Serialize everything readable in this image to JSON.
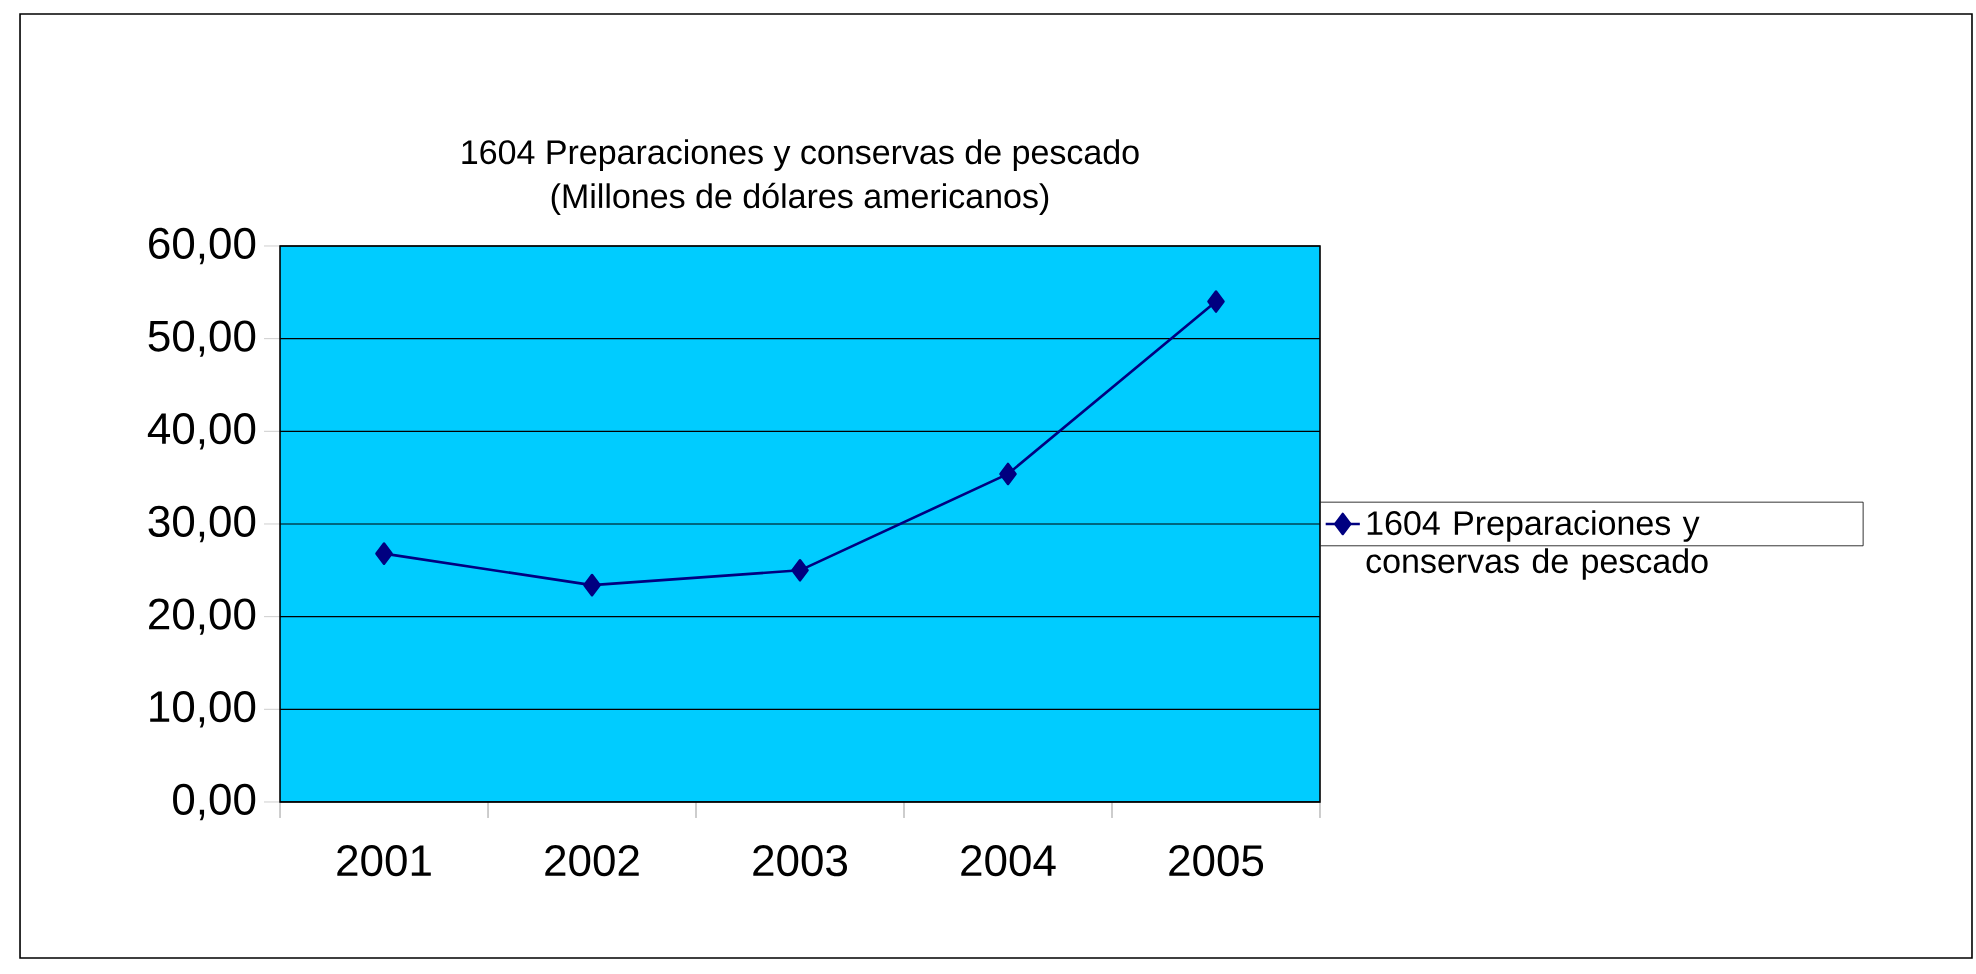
{
  "chart_data": {
    "type": "line",
    "title": "1604 Preparaciones y conservas de pescado",
    "subtitle": "(Millones de dólares americanos)",
    "categories": [
      "2001",
      "2002",
      "2003",
      "2004",
      "2005"
    ],
    "series": [
      {
        "name": "1604 Preparaciones y conservas de pescado",
        "color": "#000080",
        "values": [
          26.8,
          23.4,
          25.0,
          35.4,
          54.0
        ]
      }
    ],
    "ylim": [
      0,
      60
    ],
    "yticks": [
      {
        "value": 0,
        "label": "0,00"
      },
      {
        "value": 10,
        "label": "10,00"
      },
      {
        "value": 20,
        "label": "20,00"
      },
      {
        "value": 30,
        "label": "30,00"
      },
      {
        "value": 40,
        "label": "40,00"
      },
      {
        "value": 50,
        "label": "50,00"
      },
      {
        "value": 60,
        "label": "60,00"
      }
    ],
    "grid": "y",
    "legend": "right",
    "marker": "diamond",
    "line_style": "solid"
  }
}
